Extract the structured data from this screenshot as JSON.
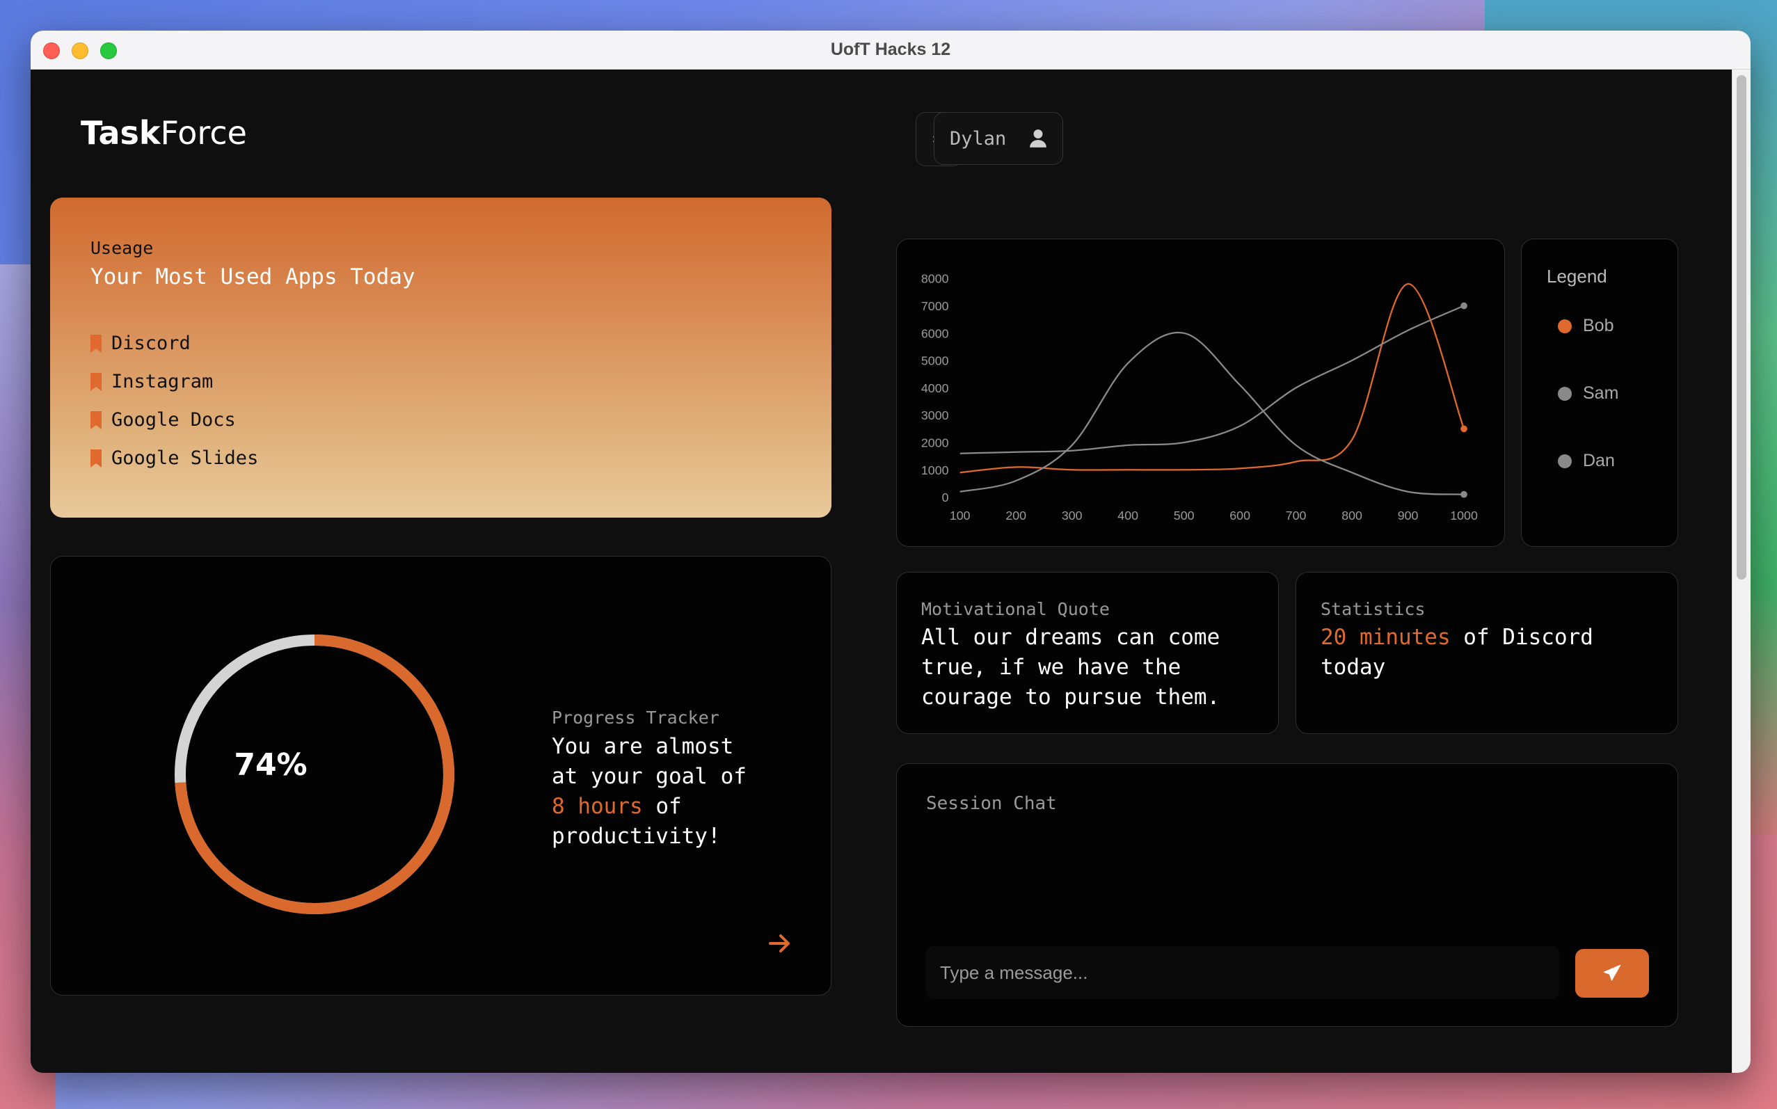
{
  "window": {
    "title": "UofT Hacks 12"
  },
  "header": {
    "logo_bold": "Task",
    "logo_regular": "Force",
    "settings_icon": "gear-icon",
    "user_name": "Dylan",
    "user_icon": "user-icon"
  },
  "usage": {
    "subtitle": "Useage",
    "title": "Your Most Used Apps Today",
    "apps": [
      "Discord",
      "Instagram",
      "Google Docs",
      "Google Slides"
    ],
    "bullet_icon": "bookmark-icon"
  },
  "progress": {
    "percent": 74,
    "percent_label": "74%",
    "subtitle": "Progress Tracker",
    "text_before": "You are almost at your goal of ",
    "highlight": "8 hours",
    "text_after": " of productivity!",
    "arrow_icon": "arrow-right-icon"
  },
  "colors": {
    "accent": "#e0692e",
    "muted": "#8a8a8a",
    "card_bg": "#030303"
  },
  "chart_data": {
    "type": "line",
    "x": [
      100,
      200,
      300,
      400,
      500,
      600,
      700,
      800,
      900,
      1000
    ],
    "ylim": [
      0,
      8000
    ],
    "yticks": [
      0,
      1000,
      2000,
      3000,
      4000,
      5000,
      6000,
      7000,
      8000
    ],
    "xticks": [
      100,
      200,
      300,
      400,
      500,
      600,
      700,
      800,
      900,
      1000
    ],
    "series": [
      {
        "name": "Bob",
        "color": "#e0692e",
        "values": [
          900,
          1100,
          1000,
          1000,
          1000,
          1050,
          1300,
          2100,
          7800,
          2500
        ]
      },
      {
        "name": "Sam",
        "color": "#8a8a8a",
        "values": [
          1600,
          1650,
          1700,
          1900,
          2000,
          2600,
          4000,
          5000,
          6100,
          7000
        ]
      },
      {
        "name": "Dan",
        "color": "#8a8a8a",
        "values": [
          200,
          600,
          1900,
          4900,
          6000,
          4100,
          1900,
          900,
          200,
          100
        ]
      }
    ],
    "legend_title": "Legend",
    "legend_position": "right"
  },
  "quote": {
    "subtitle": "Motivational Quote",
    "text": "All our dreams can come true, if we have the courage to pursue them."
  },
  "stats": {
    "subtitle": "Statistics",
    "highlight": "20 minutes",
    "text": " of Discord today"
  },
  "chat": {
    "title": "Session Chat",
    "placeholder": "Type a message...",
    "send_icon": "send-icon"
  }
}
